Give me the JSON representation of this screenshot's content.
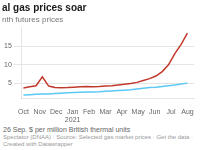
{
  "chart_data": {
    "type": "line",
    "title": "al gas prices soar",
    "subtitle": "nth futures prices",
    "annotations": [
      "26 Sep. $ per million British thermal units",
      "Spectator (DNAA) · Source: Selected gas market prices · Get the data · Created with Datawrapper"
    ],
    "x": [
      0,
      0.38461538,
      0.76923077,
      1.15384615,
      1.53846154,
      1.92307692,
      2.30769231,
      2.69230769,
      3.07692308,
      3.46153846,
      3.84615385,
      4.23076923,
      4.61538462,
      5,
      5.38461538,
      5.76923077,
      6.15384615,
      6.53846154,
      6.92307692,
      7.30769231,
      7.69230769,
      8.07692308,
      8.46153846,
      8.84615385,
      9.23076923,
      9.61538462,
      10
    ],
    "series": [
      {
        "color": "#c0392b",
        "values": [
          3.8,
          4.1,
          4.4,
          6.8,
          4.3,
          3.9,
          3.85,
          3.9,
          4.0,
          4.1,
          4.2,
          4.15,
          4.2,
          4.3,
          4.4,
          4.6,
          4.8,
          5.0,
          5.3,
          5.8,
          6.3,
          7.0,
          8.2,
          10.0,
          13.0,
          15.5,
          18.5
        ]
      },
      {
        "color": "#5bc8f5",
        "values": [
          1.9,
          2.0,
          2.1,
          2.15,
          2.2,
          2.3,
          2.4,
          2.5,
          2.6,
          2.65,
          2.7,
          2.75,
          2.8,
          2.9,
          3.0,
          3.1,
          3.2,
          3.3,
          3.5,
          3.7,
          3.9,
          4.0,
          4.2,
          4.4,
          4.6,
          4.85,
          5.1
        ]
      }
    ],
    "xlim": [
      -0.1,
      10.4
    ],
    "xticks": [
      {
        "value": 0,
        "label": "Oct"
      },
      {
        "value": 1,
        "label": "Nov"
      },
      {
        "value": 2,
        "label": "Dec"
      },
      {
        "value": 3,
        "label": "Jan\n2021"
      },
      {
        "value": 4,
        "label": "Feb"
      },
      {
        "value": 5,
        "label": "Mar"
      },
      {
        "value": 6,
        "label": "Apr"
      },
      {
        "value": 7,
        "label": "May"
      },
      {
        "value": 8,
        "label": "Jun"
      },
      {
        "value": 9,
        "label": "Jul"
      },
      {
        "value": 10,
        "label": "Aug"
      }
    ],
    "ylim": [
      1.0,
      20.0
    ],
    "yticks": [
      5,
      10,
      15
    ],
    "grid": "y"
  }
}
